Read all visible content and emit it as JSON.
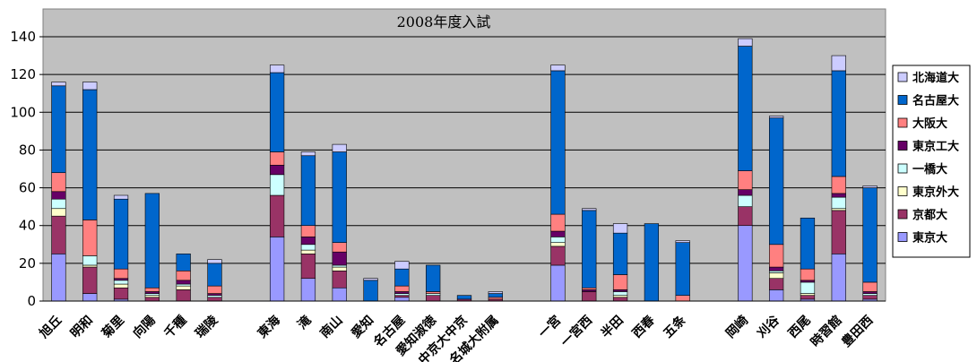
{
  "chart_data": {
    "type": "bar",
    "stacked": true,
    "title": "2008年度入試",
    "xlabel": "",
    "ylabel": "",
    "ylim": [
      0,
      140
    ],
    "yticks": [
      0,
      20,
      40,
      60,
      80,
      100,
      120,
      140
    ],
    "grid": true,
    "legend_position": "right",
    "categories": [
      "旭丘",
      "明和",
      "菊里",
      "向陽",
      "千種",
      "瑞陵",
      "",
      "東海",
      "滝",
      "南山",
      "愛知",
      "名古屋",
      "愛知淑徳",
      "中京大中京",
      "名城大附属",
      "",
      "一宮",
      "一宮西",
      "半田",
      "西春",
      "五条",
      "",
      "岡崎",
      "刈谷",
      "西尾",
      "時習館",
      "豊田西"
    ],
    "series": [
      {
        "name": "東京大",
        "color": "#9999ff",
        "values": [
          25,
          4,
          1,
          0,
          0,
          0,
          null,
          34,
          12,
          7,
          0,
          2,
          0,
          0,
          0,
          null,
          19,
          0,
          0,
          0,
          0,
          null,
          40,
          6,
          1,
          25,
          1
        ]
      },
      {
        "name": "京都大",
        "color": "#993366",
        "values": [
          20,
          14,
          6,
          2,
          6,
          2,
          null,
          22,
          13,
          9,
          0,
          1,
          3,
          1,
          1,
          null,
          10,
          5,
          2,
          0,
          0,
          null,
          10,
          6,
          2,
          23,
          2
        ]
      },
      {
        "name": "東京外大",
        "color": "#ffffcc",
        "values": [
          4,
          1,
          2,
          1,
          2,
          0,
          null,
          0,
          2,
          2,
          0,
          0,
          0,
          0,
          0,
          null,
          2,
          0,
          1,
          0,
          0,
          null,
          0,
          3,
          1,
          1,
          0
        ]
      },
      {
        "name": "一橋大",
        "color": "#ccffff",
        "values": [
          5,
          5,
          2,
          1,
          1,
          1,
          null,
          11,
          3,
          1,
          0,
          1,
          1,
          0,
          0,
          null,
          3,
          0,
          2,
          0,
          0,
          null,
          6,
          1,
          6,
          6,
          1
        ]
      },
      {
        "name": "東京工大",
        "color": "#660066",
        "values": [
          4,
          0,
          1,
          1,
          2,
          1,
          null,
          5,
          4,
          7,
          0,
          1,
          0,
          0,
          0,
          null,
          3,
          1,
          1,
          0,
          0,
          null,
          3,
          2,
          1,
          2,
          1
        ]
      },
      {
        "name": "大阪大",
        "color": "#ff8080",
        "values": [
          10,
          19,
          5,
          2,
          5,
          4,
          null,
          7,
          6,
          5,
          0,
          3,
          1,
          0,
          1,
          null,
          9,
          1,
          8,
          0,
          3,
          null,
          10,
          12,
          6,
          9,
          5
        ]
      },
      {
        "name": "名古屋大",
        "color": "#0066cc",
        "values": [
          46,
          69,
          37,
          50,
          9,
          12,
          null,
          42,
          37,
          48,
          11,
          9,
          14,
          2,
          2,
          null,
          76,
          41,
          22,
          41,
          28,
          null,
          66,
          67,
          27,
          56,
          50
        ]
      },
      {
        "name": "北海道大",
        "color": "#ccccff",
        "values": [
          2,
          4,
          2,
          0,
          0,
          2,
          null,
          4,
          2,
          4,
          1,
          4,
          0,
          0,
          1,
          null,
          3,
          1,
          5,
          0,
          1,
          null,
          4,
          1,
          0,
          8,
          1
        ]
      }
    ]
  }
}
